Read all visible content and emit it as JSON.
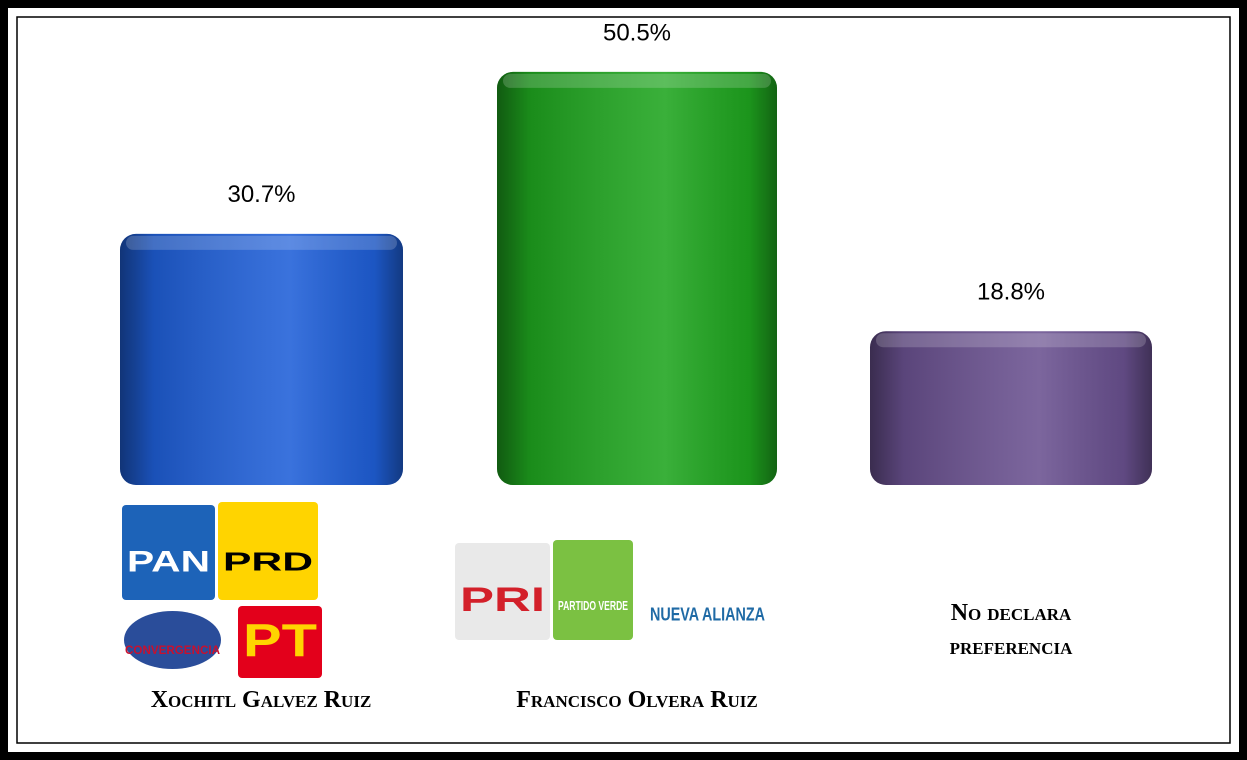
{
  "chart_data": {
    "type": "bar",
    "categories": [
      "Xochitl Galvez Ruiz",
      "Francisco Olvera Ruiz",
      "No declara preferencia"
    ],
    "values": [
      30.7,
      50.5,
      18.8
    ],
    "value_labels": [
      "30.7%",
      "50.5%",
      "18.8%"
    ],
    "colors": [
      "#1f5fd8",
      "#1fa51f",
      "#6a5190"
    ],
    "logos": [
      [
        "PAN",
        "PRD",
        "CONVERGENCIA",
        "PT"
      ],
      [
        "PRI",
        "PARTIDO VERDE",
        "NUEVA ALIANZA"
      ],
      []
    ]
  }
}
